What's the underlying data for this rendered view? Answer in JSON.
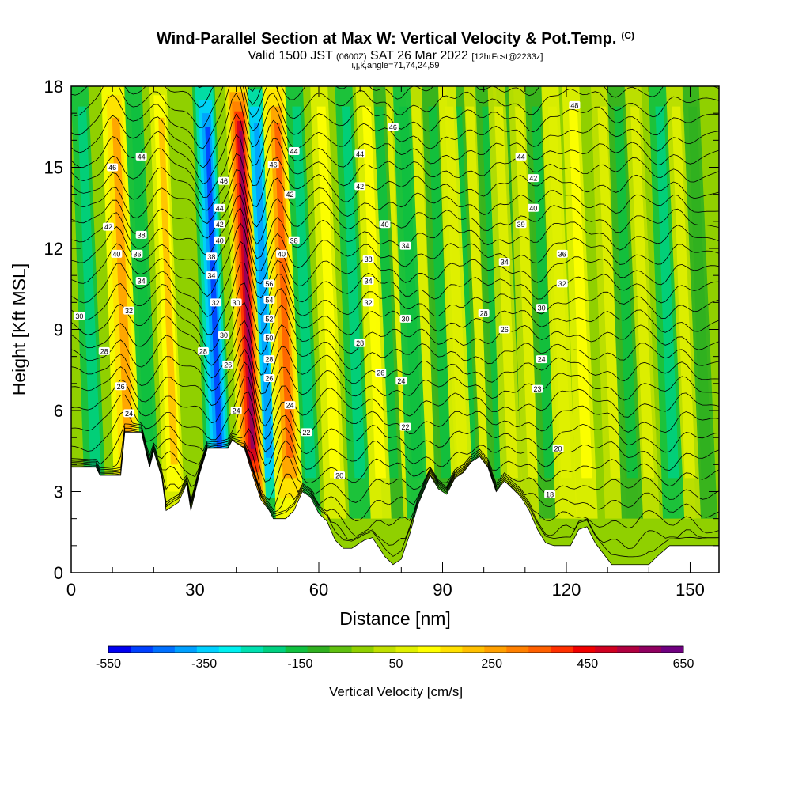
{
  "header": {
    "title": "Wind-Parallel Section at Max W: Vertical Velocity & Pot.Temp.",
    "title_tag": "(C)",
    "valid_main": "Valid 1500 JST",
    "valid_utc": "(0600Z)",
    "valid_date": "SAT 26 Mar 2022",
    "valid_fcst": "[12hrFcst@2233z]",
    "section_info": "i,j,k,angle=71,74,24,59"
  },
  "chart_data": {
    "type": "heatmap",
    "xlabel": "Distance [nm]",
    "ylabel": "Height [Kft MSL]",
    "xlim": [
      0,
      157
    ],
    "ylim": [
      0,
      18
    ],
    "x_ticks": [
      0,
      30,
      60,
      90,
      120,
      150
    ],
    "y_ticks": [
      0,
      3,
      6,
      9,
      12,
      15,
      18
    ],
    "x_tick_labels": [
      "0",
      "30",
      "60",
      "90",
      "120",
      "150"
    ],
    "y_tick_labels": [
      "0",
      "3",
      "6",
      "9",
      "12",
      "15",
      "18"
    ],
    "colorbar": {
      "label": "Vertical Velocity [cm/s]",
      "min": -550,
      "max": 650,
      "step": 50,
      "tick_values": [
        -550,
        -350,
        -150,
        50,
        250,
        450,
        650
      ],
      "tick_labels": [
        "-550",
        "-350",
        "-150",
        "50",
        "250",
        "450",
        "650"
      ],
      "colors": [
        "#0000f0",
        "#0040ff",
        "#0070ff",
        "#00a0ff",
        "#00d0ff",
        "#00f0f0",
        "#00e0b0",
        "#00d080",
        "#10c040",
        "#30b020",
        "#60c010",
        "#90d000",
        "#c0e000",
        "#e0f000",
        "#ffff00",
        "#ffe000",
        "#ffc000",
        "#ffa000",
        "#ff8000",
        "#ff6000",
        "#ff3000",
        "#f00000",
        "#d00020",
        "#b00040",
        "#900060",
        "#700080"
      ]
    },
    "updrafts": [
      {
        "x": 14,
        "w": 330
      },
      {
        "x": 25,
        "w": 250
      },
      {
        "x": 44,
        "w": 650
      },
      {
        "x": 53,
        "w": 420
      },
      {
        "x": 64,
        "w": 180
      },
      {
        "x": 75,
        "w": 150
      },
      {
        "x": 80,
        "w": 120
      },
      {
        "x": 87,
        "w": 110
      },
      {
        "x": 95,
        "w": 140
      },
      {
        "x": 100,
        "w": 110
      },
      {
        "x": 107,
        "w": 130
      },
      {
        "x": 112,
        "w": 120
      },
      {
        "x": 120,
        "w": 140
      },
      {
        "x": 125,
        "w": 150
      },
      {
        "x": 132,
        "w": 120
      },
      {
        "x": 140,
        "w": 110
      },
      {
        "x": 150,
        "w": 110
      }
    ],
    "downdrafts": [
      {
        "x": 6,
        "w": -170
      },
      {
        "x": 19,
        "w": -150
      },
      {
        "x": 36,
        "w": -480
      },
      {
        "x": 48,
        "w": -400
      },
      {
        "x": 58,
        "w": -170
      },
      {
        "x": 70,
        "w": -170
      },
      {
        "x": 78,
        "w": -140
      },
      {
        "x": 84,
        "w": -150
      },
      {
        "x": 91,
        "w": -120
      },
      {
        "x": 97,
        "w": -130
      },
      {
        "x": 104,
        "w": -120
      },
      {
        "x": 109,
        "w": -100
      },
      {
        "x": 116,
        "w": -120
      },
      {
        "x": 136,
        "w": -130
      },
      {
        "x": 146,
        "w": -170
      },
      {
        "x": 154,
        "w": -100
      }
    ],
    "terrain_kft": [
      {
        "x": 0,
        "h": 3.9
      },
      {
        "x": 6,
        "h": 3.9
      },
      {
        "x": 7,
        "h": 3.6
      },
      {
        "x": 12,
        "h": 3.6
      },
      {
        "x": 13,
        "h": 5.2
      },
      {
        "x": 17,
        "h": 5.2
      },
      {
        "x": 19,
        "h": 3.9
      },
      {
        "x": 20,
        "h": 4.5
      },
      {
        "x": 22,
        "h": 3.5
      },
      {
        "x": 23,
        "h": 2.3
      },
      {
        "x": 26,
        "h": 2.6
      },
      {
        "x": 28,
        "h": 3.3
      },
      {
        "x": 29,
        "h": 2.3
      },
      {
        "x": 31,
        "h": 3.6
      },
      {
        "x": 33,
        "h": 4.6
      },
      {
        "x": 38,
        "h": 4.6
      },
      {
        "x": 39,
        "h": 4.9
      },
      {
        "x": 42,
        "h": 4.6
      },
      {
        "x": 44,
        "h": 3.6
      },
      {
        "x": 46,
        "h": 2.7
      },
      {
        "x": 48,
        "h": 2.3
      },
      {
        "x": 49,
        "h": 2.0
      },
      {
        "x": 52,
        "h": 2.0
      },
      {
        "x": 54,
        "h": 2.3
      },
      {
        "x": 56,
        "h": 3.0
      },
      {
        "x": 58,
        "h": 2.8
      },
      {
        "x": 60,
        "h": 2.2
      },
      {
        "x": 62,
        "h": 1.9
      },
      {
        "x": 64,
        "h": 1.2
      },
      {
        "x": 66,
        "h": 0.9
      },
      {
        "x": 68,
        "h": 0.9
      },
      {
        "x": 71,
        "h": 1.2
      },
      {
        "x": 73,
        "h": 1.3
      },
      {
        "x": 76,
        "h": 0.6
      },
      {
        "x": 78,
        "h": 0.3
      },
      {
        "x": 80,
        "h": 0.5
      },
      {
        "x": 82,
        "h": 1.4
      },
      {
        "x": 84,
        "h": 2.5
      },
      {
        "x": 87,
        "h": 3.6
      },
      {
        "x": 89,
        "h": 3.1
      },
      {
        "x": 91,
        "h": 2.9
      },
      {
        "x": 93,
        "h": 3.5
      },
      {
        "x": 95,
        "h": 3.7
      },
      {
        "x": 97,
        "h": 4.1
      },
      {
        "x": 99,
        "h": 4.3
      },
      {
        "x": 101,
        "h": 3.9
      },
      {
        "x": 103,
        "h": 3.0
      },
      {
        "x": 105,
        "h": 3.4
      },
      {
        "x": 107,
        "h": 3.1
      },
      {
        "x": 109,
        "h": 2.8
      },
      {
        "x": 111,
        "h": 2.3
      },
      {
        "x": 113,
        "h": 1.6
      },
      {
        "x": 115,
        "h": 1.1
      },
      {
        "x": 117,
        "h": 1.0
      },
      {
        "x": 121,
        "h": 1.0
      },
      {
        "x": 123,
        "h": 1.6
      },
      {
        "x": 125,
        "h": 1.7
      },
      {
        "x": 127,
        "h": 1.1
      },
      {
        "x": 129,
        "h": 0.7
      },
      {
        "x": 131,
        "h": 0.3
      },
      {
        "x": 140,
        "h": 0.3
      },
      {
        "x": 142,
        "h": 0.6
      },
      {
        "x": 145,
        "h": 1.0
      },
      {
        "x": 157,
        "h": 1.0
      }
    ],
    "theta_contour_labels": [
      {
        "x": 10,
        "y": 15.0,
        "text": "46"
      },
      {
        "x": 17,
        "y": 15.4,
        "text": "44"
      },
      {
        "x": 9,
        "y": 12.8,
        "text": "42"
      },
      {
        "x": 11,
        "y": 11.8,
        "text": "40"
      },
      {
        "x": 17,
        "y": 12.5,
        "text": "38"
      },
      {
        "x": 16,
        "y": 11.8,
        "text": "36"
      },
      {
        "x": 17,
        "y": 10.8,
        "text": "34"
      },
      {
        "x": 14,
        "y": 9.7,
        "text": "32"
      },
      {
        "x": 2,
        "y": 9.5,
        "text": "30"
      },
      {
        "x": 8,
        "y": 8.2,
        "text": "28"
      },
      {
        "x": 12,
        "y": 6.9,
        "text": "26"
      },
      {
        "x": 14,
        "y": 5.9,
        "text": "24"
      },
      {
        "x": 37,
        "y": 14.5,
        "text": "46"
      },
      {
        "x": 36,
        "y": 13.5,
        "text": "44"
      },
      {
        "x": 36,
        "y": 12.9,
        "text": "42"
      },
      {
        "x": 36,
        "y": 12.3,
        "text": "40"
      },
      {
        "x": 34,
        "y": 11.7,
        "text": "38"
      },
      {
        "x": 34,
        "y": 11.0,
        "text": "34"
      },
      {
        "x": 35,
        "y": 10.0,
        "text": "32"
      },
      {
        "x": 40,
        "y": 10.0,
        "text": "30"
      },
      {
        "x": 37,
        "y": 8.8,
        "text": "30"
      },
      {
        "x": 32,
        "y": 8.2,
        "text": "28"
      },
      {
        "x": 38,
        "y": 7.7,
        "text": "26"
      },
      {
        "x": 40,
        "y": 6.0,
        "text": "24"
      },
      {
        "x": 49,
        "y": 15.1,
        "text": "46"
      },
      {
        "x": 54,
        "y": 15.6,
        "text": "44"
      },
      {
        "x": 53,
        "y": 14.0,
        "text": "42"
      },
      {
        "x": 51,
        "y": 11.8,
        "text": "40"
      },
      {
        "x": 54,
        "y": 12.3,
        "text": "38"
      },
      {
        "x": 48,
        "y": 10.7,
        "text": "56"
      },
      {
        "x": 48,
        "y": 10.1,
        "text": "54"
      },
      {
        "x": 48,
        "y": 9.4,
        "text": "52"
      },
      {
        "x": 48,
        "y": 8.7,
        "text": "50"
      },
      {
        "x": 48,
        "y": 7.9,
        "text": "28"
      },
      {
        "x": 48,
        "y": 7.2,
        "text": "26"
      },
      {
        "x": 53,
        "y": 6.2,
        "text": "24"
      },
      {
        "x": 57,
        "y": 5.2,
        "text": "22"
      },
      {
        "x": 65,
        "y": 3.6,
        "text": "20"
      },
      {
        "x": 70,
        "y": 15.5,
        "text": "44"
      },
      {
        "x": 78,
        "y": 16.5,
        "text": "46"
      },
      {
        "x": 70,
        "y": 14.3,
        "text": "42"
      },
      {
        "x": 76,
        "y": 12.9,
        "text": "40"
      },
      {
        "x": 81,
        "y": 12.1,
        "text": "34"
      },
      {
        "x": 72,
        "y": 11.6,
        "text": "38"
      },
      {
        "x": 72,
        "y": 10.8,
        "text": "34"
      },
      {
        "x": 72,
        "y": 10.0,
        "text": "32"
      },
      {
        "x": 81,
        "y": 9.4,
        "text": "30"
      },
      {
        "x": 70,
        "y": 8.5,
        "text": "28"
      },
      {
        "x": 75,
        "y": 7.4,
        "text": "26"
      },
      {
        "x": 80,
        "y": 7.1,
        "text": "24"
      },
      {
        "x": 81,
        "y": 5.4,
        "text": "22"
      },
      {
        "x": 122,
        "y": 17.3,
        "text": "48"
      },
      {
        "x": 109,
        "y": 15.4,
        "text": "44"
      },
      {
        "x": 112,
        "y": 14.6,
        "text": "42"
      },
      {
        "x": 112,
        "y": 13.5,
        "text": "40"
      },
      {
        "x": 109,
        "y": 12.9,
        "text": "39"
      },
      {
        "x": 119,
        "y": 11.8,
        "text": "36"
      },
      {
        "x": 105,
        "y": 11.5,
        "text": "34"
      },
      {
        "x": 119,
        "y": 10.7,
        "text": "32"
      },
      {
        "x": 114,
        "y": 9.8,
        "text": "30"
      },
      {
        "x": 100,
        "y": 9.6,
        "text": "28"
      },
      {
        "x": 105,
        "y": 9.0,
        "text": "26"
      },
      {
        "x": 114,
        "y": 7.9,
        "text": "24"
      },
      {
        "x": 113,
        "y": 6.8,
        "text": "23"
      },
      {
        "x": 118,
        "y": 4.6,
        "text": "20"
      },
      {
        "x": 116,
        "y": 2.9,
        "text": "18"
      }
    ]
  }
}
